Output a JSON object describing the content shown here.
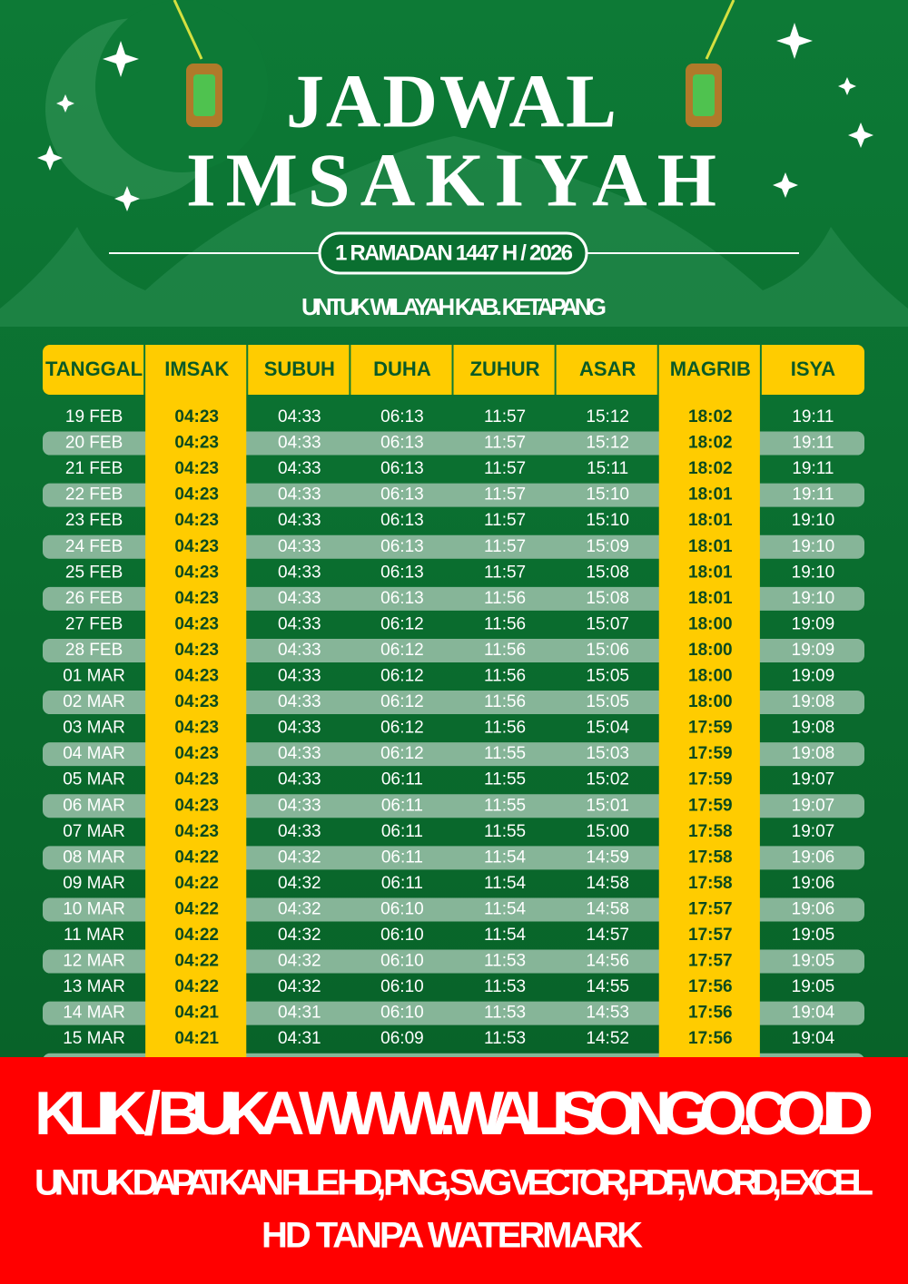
{
  "header": {
    "title_line1": "JADWAL",
    "title_line2": "IMSAKIYAH",
    "subtitle": "1 RAMADAN 1447 H / 2026",
    "region": "UNTUK WILAYAH KAB. KETAPANG"
  },
  "table": {
    "columns": [
      "TANGGAL",
      "IMSAK",
      "SUBUH",
      "DUHA",
      "ZUHUR",
      "ASAR",
      "MAGRIB",
      "ISYA"
    ],
    "rows": [
      [
        "19 FEB",
        "04:23",
        "04:33",
        "06:13",
        "11:57",
        "15:12",
        "18:02",
        "19:11"
      ],
      [
        "20 FEB",
        "04:23",
        "04:33",
        "06:13",
        "11:57",
        "15:12",
        "18:02",
        "19:11"
      ],
      [
        "21 FEB",
        "04:23",
        "04:33",
        "06:13",
        "11:57",
        "15:11",
        "18:02",
        "19:11"
      ],
      [
        "22 FEB",
        "04:23",
        "04:33",
        "06:13",
        "11:57",
        "15:10",
        "18:01",
        "19:11"
      ],
      [
        "23 FEB",
        "04:23",
        "04:33",
        "06:13",
        "11:57",
        "15:10",
        "18:01",
        "19:10"
      ],
      [
        "24 FEB",
        "04:23",
        "04:33",
        "06:13",
        "11:57",
        "15:09",
        "18:01",
        "19:10"
      ],
      [
        "25 FEB",
        "04:23",
        "04:33",
        "06:13",
        "11:57",
        "15:08",
        "18:01",
        "19:10"
      ],
      [
        "26 FEB",
        "04:23",
        "04:33",
        "06:13",
        "11:56",
        "15:08",
        "18:01",
        "19:10"
      ],
      [
        "27 FEB",
        "04:23",
        "04:33",
        "06:12",
        "11:56",
        "15:07",
        "18:00",
        "19:09"
      ],
      [
        "28 FEB",
        "04:23",
        "04:33",
        "06:12",
        "11:56",
        "15:06",
        "18:00",
        "19:09"
      ],
      [
        "01 MAR",
        "04:23",
        "04:33",
        "06:12",
        "11:56",
        "15:05",
        "18:00",
        "19:09"
      ],
      [
        "02 MAR",
        "04:23",
        "04:33",
        "06:12",
        "11:56",
        "15:05",
        "18:00",
        "19:08"
      ],
      [
        "03 MAR",
        "04:23",
        "04:33",
        "06:12",
        "11:56",
        "15:04",
        "17:59",
        "19:08"
      ],
      [
        "04 MAR",
        "04:23",
        "04:33",
        "06:12",
        "11:55",
        "15:03",
        "17:59",
        "19:08"
      ],
      [
        "05 MAR",
        "04:23",
        "04:33",
        "06:11",
        "11:55",
        "15:02",
        "17:59",
        "19:07"
      ],
      [
        "06 MAR",
        "04:23",
        "04:33",
        "06:11",
        "11:55",
        "15:01",
        "17:59",
        "19:07"
      ],
      [
        "07 MAR",
        "04:23",
        "04:33",
        "06:11",
        "11:55",
        "15:00",
        "17:58",
        "19:07"
      ],
      [
        "08 MAR",
        "04:22",
        "04:32",
        "06:11",
        "11:54",
        "14:59",
        "17:58",
        "19:06"
      ],
      [
        "09 MAR",
        "04:22",
        "04:32",
        "06:11",
        "11:54",
        "14:58",
        "17:58",
        "19:06"
      ],
      [
        "10 MAR",
        "04:22",
        "04:32",
        "06:10",
        "11:54",
        "14:58",
        "17:57",
        "19:06"
      ],
      [
        "11 MAR",
        "04:22",
        "04:32",
        "06:10",
        "11:54",
        "14:57",
        "17:57",
        "19:05"
      ],
      [
        "12 MAR",
        "04:22",
        "04:32",
        "06:10",
        "11:53",
        "14:56",
        "17:57",
        "19:05"
      ],
      [
        "13 MAR",
        "04:22",
        "04:32",
        "06:10",
        "11:53",
        "14:55",
        "17:56",
        "19:05"
      ],
      [
        "14 MAR",
        "04:21",
        "04:31",
        "06:10",
        "11:53",
        "14:53",
        "17:56",
        "19:04"
      ],
      [
        "15 MAR",
        "04:21",
        "04:31",
        "06:09",
        "11:53",
        "14:52",
        "17:56",
        "19:04"
      ]
    ]
  },
  "banner": {
    "line1": "KLIK / BUKA WWW.WALISONGO.CO.ID",
    "line2": "UNTUK DAPATKAN FILE HD, PNG, SVG VECTOR, PDF, WORD, EXCEL",
    "line3": "HD TANPA WATERMARK"
  }
}
